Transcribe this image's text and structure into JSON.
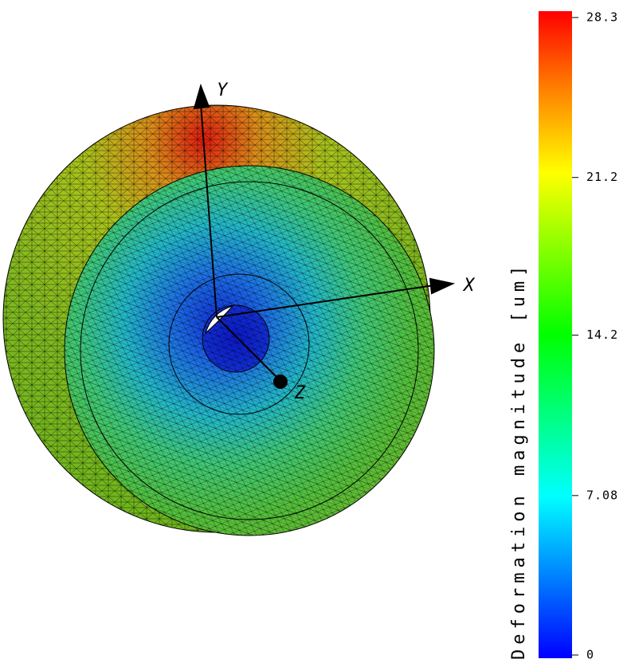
{
  "colorbar": {
    "label": "Deformation magnitude [um]",
    "range": [
      0,
      28.3
    ],
    "ticks": [
      0,
      7.08,
      14.2,
      21.2,
      28.3
    ]
  },
  "axes": {
    "x": "X",
    "y": "Y",
    "z": "Z"
  }
}
